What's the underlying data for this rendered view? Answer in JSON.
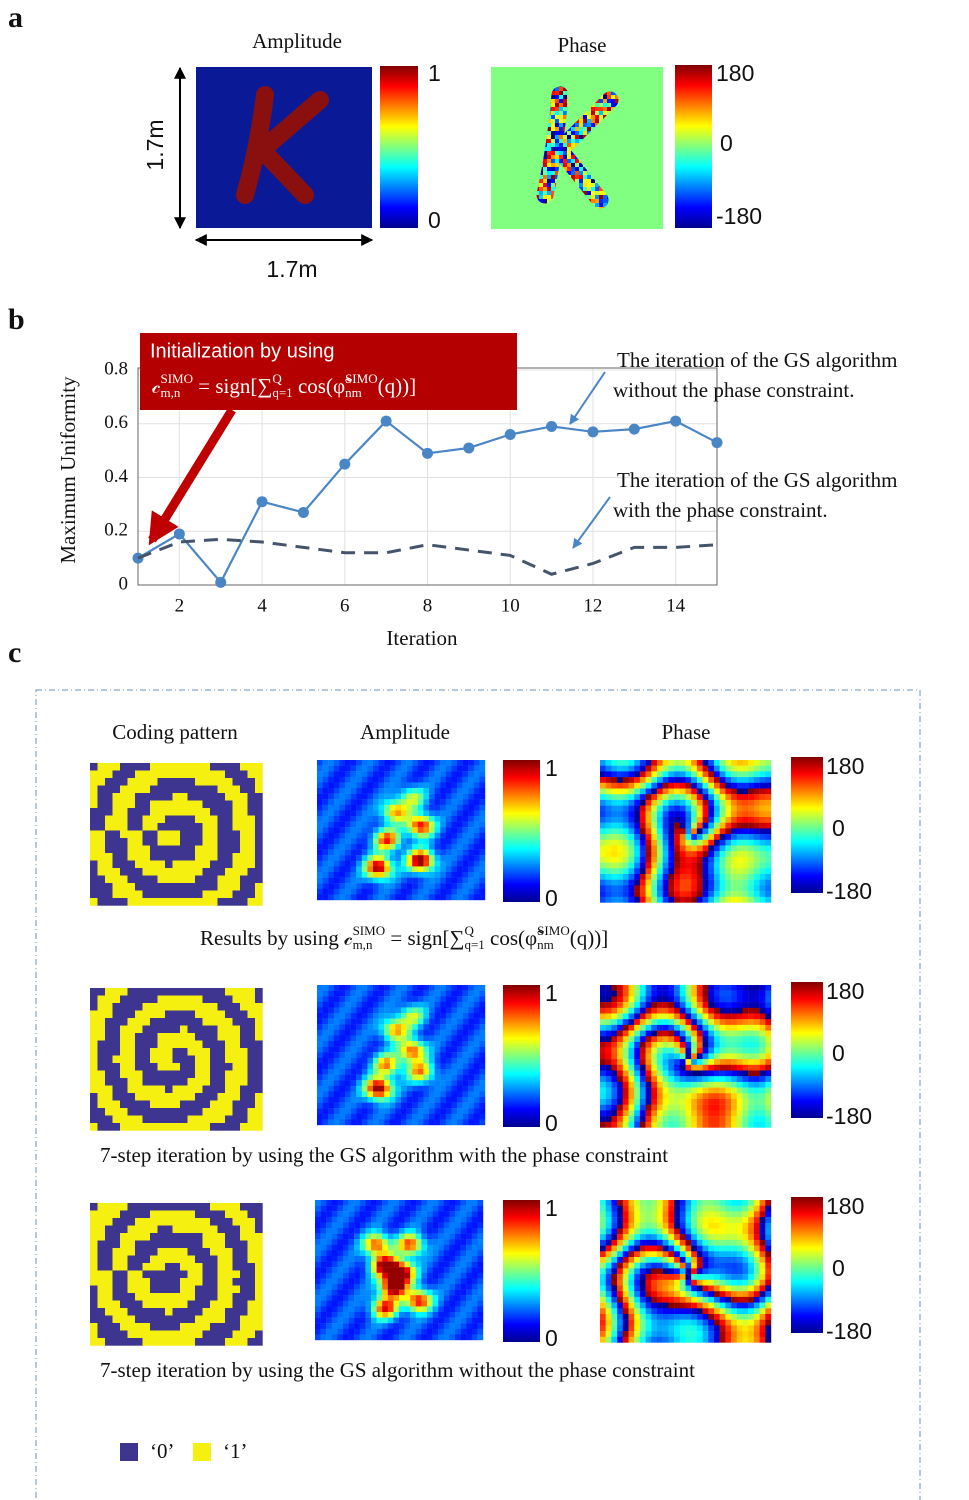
{
  "panel_a": {
    "label": "a",
    "amplitude_title": "Amplitude",
    "phase_title": "Phase",
    "amplitude_ticks": [
      1,
      0
    ],
    "phase_ticks": [
      180,
      0,
      -180
    ],
    "size_labels": [
      "1.7m",
      "1.7m"
    ]
  },
  "chart_data": {
    "type": "line",
    "panel_label": "b",
    "x": [
      1,
      2,
      3,
      4,
      5,
      6,
      7,
      8,
      9,
      10,
      11,
      12,
      13,
      14,
      15
    ],
    "series": [
      {
        "color": "#4a86c5",
        "style": "solid",
        "markers": true,
        "values": [
          0.1,
          0.19,
          0.01,
          0.31,
          0.27,
          0.45,
          0.61,
          0.49,
          0.51,
          0.56,
          0.59,
          0.57,
          0.58,
          0.61,
          0.53
        ]
      },
      {
        "color": "#44546a",
        "style": "dashed",
        "markers": false,
        "values": [
          0.1,
          0.16,
          0.17,
          0.16,
          0.14,
          0.12,
          0.12,
          0.15,
          0.13,
          0.11,
          0.04,
          0.08,
          0.14,
          0.14,
          0.15
        ]
      }
    ],
    "xlabel": "Iteration",
    "ylabel": "Maximum Uniformity",
    "xlim": [
      1,
      15
    ],
    "ylim": [
      0,
      0.8
    ],
    "xticks": [
      2,
      4,
      6,
      8,
      10,
      12,
      14
    ],
    "yticks": [
      0,
      0.2,
      0.4,
      0.6,
      0.8
    ],
    "grid": true,
    "annotations": [
      {
        "lines": [
          "The iteration of  the GS algorithm",
          "without the phase constraint."
        ]
      },
      {
        "lines": [
          "The iteration of  the GS algorithm",
          "with the phase constraint."
        ]
      }
    ],
    "init_box_title": "Initialization by using"
  },
  "formula": [
    {
      "text": "𝒸",
      "sup": "SIMO",
      "sub": "m,n"
    },
    {
      "text": " = sign["
    },
    {
      "text": "∑",
      "sup": "Q",
      "sub": "q=1"
    },
    {
      "text": " cos("
    },
    {
      "text": "φ̃",
      "sup": "SIMO",
      "sub": "nm"
    },
    {
      "text": "(q))]"
    }
  ],
  "panel_c": {
    "label": "c",
    "headers": [
      "Coding pattern",
      "Amplitude",
      "Phase"
    ],
    "amplitude_ticks": [
      1,
      0
    ],
    "phase_ticks": [
      180,
      0,
      -180
    ],
    "captions": [
      "Results by using",
      "7-step iteration by using the GS algorithm with the phase constraint",
      "7-step iteration by using the GS algorithm without the phase constraint"
    ],
    "legend": [
      "‘0’",
      "‘1’"
    ]
  }
}
